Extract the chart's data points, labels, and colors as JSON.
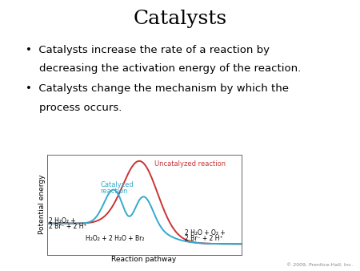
{
  "title": "Catalysts",
  "bullet1_line1": "•  Catalysts increase the rate of a reaction by",
  "bullet1_line2": "    decreasing the activation energy of the reaction.",
  "bullet2_line1": "•  Catalysts change the mechanism by which the",
  "bullet2_line2": "    process occurs.",
  "copyright": "© 2009, Prentice-Hall, Inc.",
  "xlabel": "Reaction pathway",
  "ylabel": "Potential energy",
  "reactant_label_line1": "2 H₂O₂ +",
  "reactant_label_line2": "2 Br⁻ + 2 H⁺",
  "intermediate_label": "H₂O₂ + 2 H₂O + Br₂",
  "product_label_line1": "2 H₂O + O₂ +",
  "product_label_line2": "2 Br⁻ + 2 H⁺",
  "uncatalyzed_label": "Uncatalyzed reaction",
  "catalyzed_label_line1": "Catalyzed",
  "catalyzed_label_line2": "reaction",
  "uncatalyzed_color": "#cc3333",
  "catalyzed_color": "#33aacc",
  "background_color": "#ffffff",
  "title_fontsize": 18,
  "bullet_fontsize": 9.5,
  "chart_label_fontsize": 6,
  "axis_label_fontsize": 6.5
}
